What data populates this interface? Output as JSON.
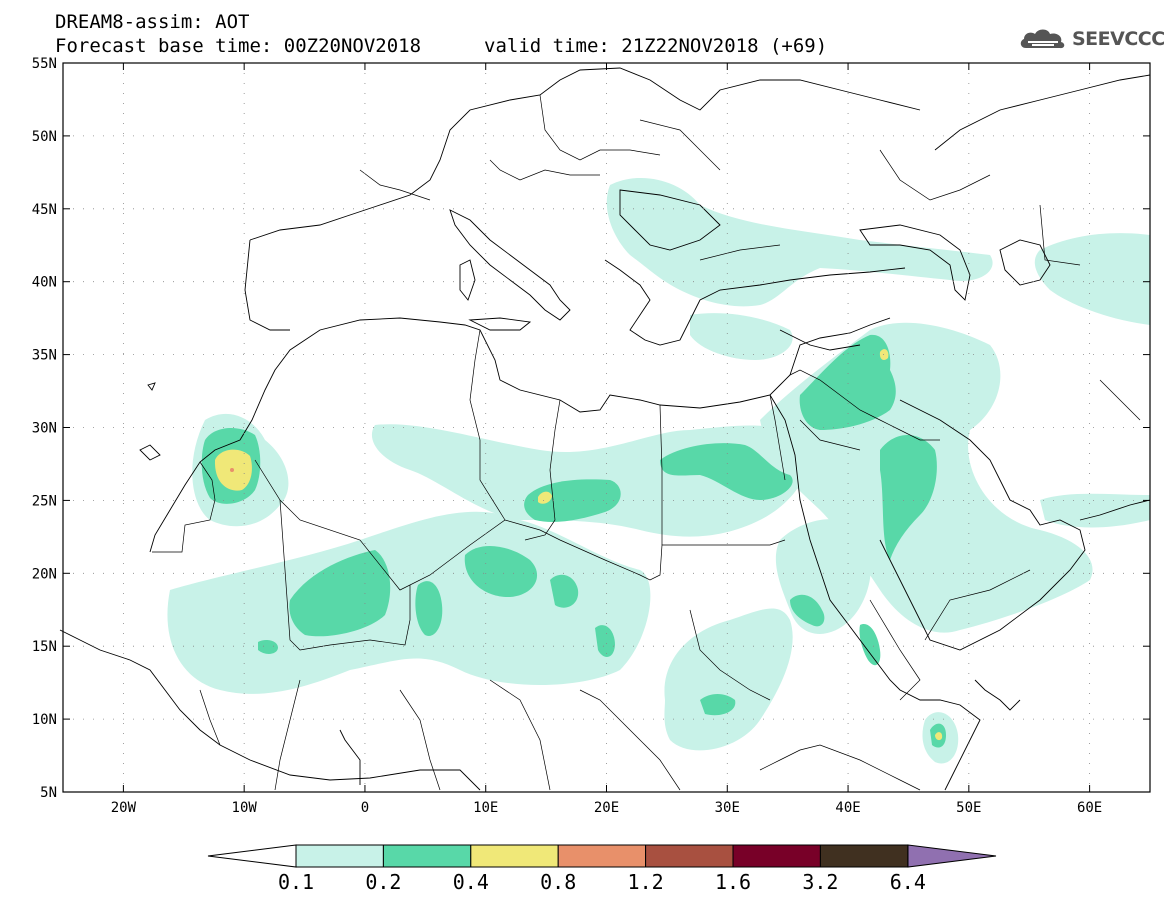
{
  "header": {
    "line1": "DREAM8-assim: AOT",
    "line2": "Forecast base time: 00Z20NOV2018",
    "valid": "valid time: 21Z22NOV2018 (+69)"
  },
  "logo": {
    "text": "SEEVCCC",
    "icon": "cloud-icon"
  },
  "map": {
    "lat_labels": [
      "55N",
      "50N",
      "45N",
      "40N",
      "35N",
      "30N",
      "25N",
      "20N",
      "15N",
      "10N",
      "5N"
    ],
    "lon_labels": [
      "20W",
      "10W",
      "0",
      "10E",
      "20E",
      "30E",
      "40E",
      "50E",
      "60E"
    ],
    "lat_range": [
      5,
      55
    ],
    "lon_range": [
      -25,
      65
    ],
    "grid": "dotted"
  },
  "legend": {
    "labels": [
      "0.1",
      "0.2",
      "0.4",
      "0.8",
      "1.2",
      "1.6",
      "3.2",
      "6.4"
    ],
    "colors": [
      "#ffffff",
      "#c8f2e8",
      "#58d8a8",
      "#f0e878",
      "#e8906a",
      "#a85040",
      "#780028",
      "#403020",
      "#9070b0"
    ]
  }
}
